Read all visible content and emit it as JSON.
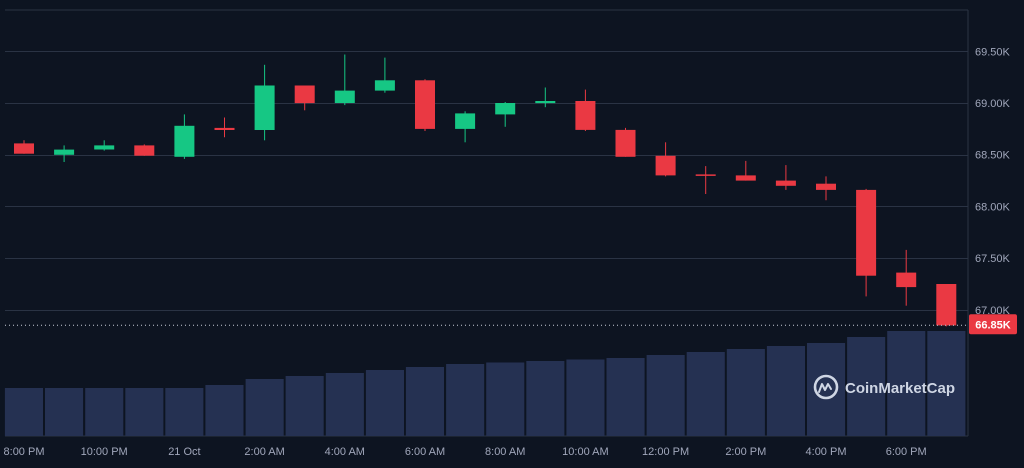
{
  "chart_data": {
    "type": "candlestick",
    "title": "",
    "xlabel": "",
    "ylabel": "",
    "ylim": [
      66650,
      69900
    ],
    "y_ticks": [
      67000,
      67500,
      68000,
      68500,
      69000,
      69500
    ],
    "y_tick_labels": [
      "67.00K",
      "67.50K",
      "68.00K",
      "68.50K",
      "69.00K",
      "69.50K"
    ],
    "x_tick_labels": [
      "8:00 PM",
      "10:00 PM",
      "21 Oct",
      "2:00 AM",
      "4:00 AM",
      "6:00 AM",
      "8:00 AM",
      "10:00 AM",
      "12:00 PM",
      "2:00 PM",
      "4:00 PM",
      "6:00 PM"
    ],
    "current_price": 66850,
    "current_price_label": "66.85K",
    "colors": {
      "up": "#16c784",
      "down": "#ea3943",
      "volume": "#253152",
      "background": "#0d1421",
      "grid": "#2a3344"
    },
    "candles": [
      {
        "o": 68610,
        "h": 68640,
        "l": 68510,
        "c": 68510
      },
      {
        "o": 68500,
        "h": 68590,
        "l": 68430,
        "c": 68550
      },
      {
        "o": 68550,
        "h": 68640,
        "l": 68540,
        "c": 68590
      },
      {
        "o": 68590,
        "h": 68600,
        "l": 68490,
        "c": 68490
      },
      {
        "o": 68480,
        "h": 68890,
        "l": 68460,
        "c": 68780
      },
      {
        "o": 68760,
        "h": 68860,
        "l": 68670,
        "c": 68740
      },
      {
        "o": 68740,
        "h": 69370,
        "l": 68640,
        "c": 69170
      },
      {
        "o": 69170,
        "h": 69170,
        "l": 68930,
        "c": 69000
      },
      {
        "o": 69000,
        "h": 69470,
        "l": 68980,
        "c": 69120
      },
      {
        "o": 69120,
        "h": 69440,
        "l": 69100,
        "c": 69220
      },
      {
        "o": 69220,
        "h": 69230,
        "l": 68730,
        "c": 68750
      },
      {
        "o": 68750,
        "h": 68920,
        "l": 68620,
        "c": 68900
      },
      {
        "o": 68890,
        "h": 69010,
        "l": 68770,
        "c": 69000
      },
      {
        "o": 69000,
        "h": 69150,
        "l": 68960,
        "c": 69020
      },
      {
        "o": 69020,
        "h": 69130,
        "l": 68730,
        "c": 68740
      },
      {
        "o": 68740,
        "h": 68760,
        "l": 68480,
        "c": 68480
      },
      {
        "o": 68490,
        "h": 68620,
        "l": 68290,
        "c": 68300
      },
      {
        "o": 68310,
        "h": 68390,
        "l": 68120,
        "c": 68300
      },
      {
        "o": 68300,
        "h": 68440,
        "l": 68250,
        "c": 68250
      },
      {
        "o": 68250,
        "h": 68400,
        "l": 68160,
        "c": 68200
      },
      {
        "o": 68220,
        "h": 68290,
        "l": 68060,
        "c": 68160
      },
      {
        "o": 68160,
        "h": 68170,
        "l": 67130,
        "c": 67330
      },
      {
        "o": 67360,
        "h": 67580,
        "l": 67040,
        "c": 67220
      },
      {
        "o": 67250,
        "h": 67250,
        "l": 66840,
        "c": 66850
      }
    ],
    "volume": [
      0.16,
      0.16,
      0.16,
      0.16,
      0.16,
      0.17,
      0.19,
      0.2,
      0.21,
      0.22,
      0.23,
      0.24,
      0.245,
      0.25,
      0.255,
      0.26,
      0.27,
      0.28,
      0.29,
      0.3,
      0.31,
      0.33,
      0.35,
      0.35
    ]
  },
  "watermark": {
    "brand": "CoinMarketCap",
    "icon": "coinmarketcap-logo-icon"
  }
}
